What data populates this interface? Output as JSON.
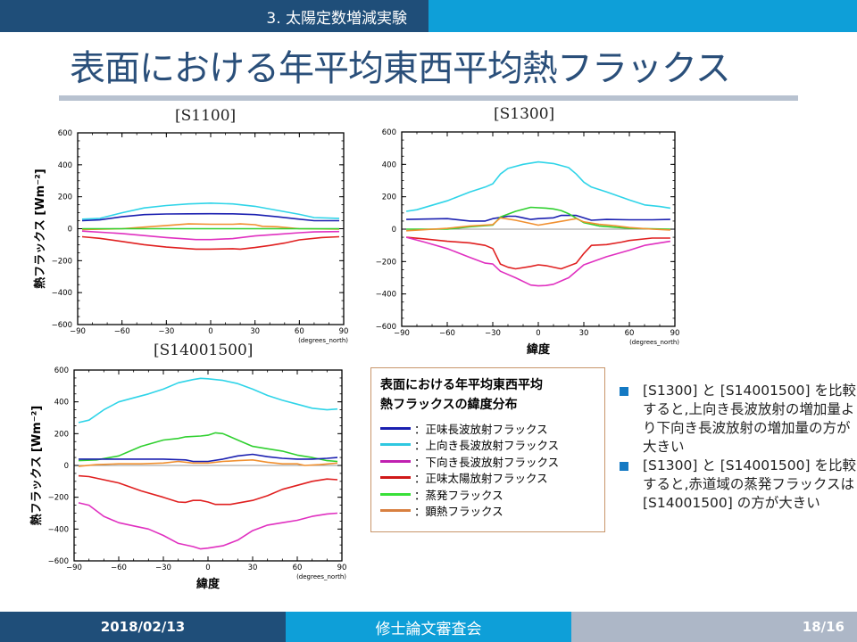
{
  "header": {
    "section": "3. 太陽定数増減実験"
  },
  "title": "表面における年平均東西平均熱フラックス",
  "colors": {
    "header_dark": "#1f4e79",
    "header_bright": "#0e9fd8",
    "title": "#2a4f7a",
    "footer_gray": "#adb7c7",
    "bullet": "#1479c3"
  },
  "chart_data": [
    {
      "type": "line",
      "title": "[S1100]",
      "xlabel": "",
      "xunit_label": "(degrees_north)",
      "ylabel": "熱フラックス [Wm⁻²]",
      "xlim": [
        -90,
        90
      ],
      "ylim": [
        -600,
        600
      ],
      "xticks": [
        "-90",
        "-60",
        "-30",
        "0",
        "30",
        "60",
        "90"
      ],
      "yticks": [
        "600",
        "400",
        "200",
        "0",
        "-200",
        "-400",
        "-600"
      ],
      "grid": false,
      "series": [
        {
          "name": "上向き長波放射フラックス",
          "color": "#2fd4e8",
          "x": [
            -87,
            -75,
            -60,
            -45,
            -30,
            -15,
            0,
            15,
            30,
            45,
            60,
            70,
            87
          ],
          "y": [
            60,
            65,
            100,
            130,
            145,
            155,
            160,
            155,
            140,
            115,
            90,
            70,
            65
          ]
        },
        {
          "name": "正味長波放射フラックス",
          "color": "#1a1fb0",
          "x": [
            -87,
            -75,
            -60,
            -45,
            -30,
            -15,
            0,
            15,
            30,
            45,
            60,
            70,
            87
          ],
          "y": [
            50,
            55,
            75,
            88,
            92,
            93,
            94,
            93,
            88,
            75,
            60,
            50,
            50
          ]
        },
        {
          "name": "顕熱フラックス",
          "color": "#f09030",
          "x": [
            -87,
            -60,
            -45,
            -30,
            -15,
            0,
            15,
            20,
            30,
            35,
            45,
            60,
            87
          ],
          "y": [
            -5,
            0,
            10,
            20,
            30,
            28,
            28,
            30,
            25,
            15,
            12,
            0,
            -3
          ]
        },
        {
          "name": "蒸発フラックス",
          "color": "#30d030",
          "x": [
            -87,
            -60,
            -30,
            0,
            30,
            60,
            87
          ],
          "y": [
            0,
            0,
            0,
            0,
            0,
            0,
            0
          ]
        },
        {
          "name": "下向き長波放射フラックス",
          "color": "#e030c0",
          "x": [
            -87,
            -60,
            -30,
            -10,
            0,
            15,
            30,
            45,
            60,
            70,
            87
          ],
          "y": [
            -15,
            -30,
            -55,
            -68,
            -68,
            -62,
            -45,
            -35,
            -25,
            -20,
            -18
          ]
        },
        {
          "name": "正味太陽放射フラックス",
          "color": "#e02020",
          "x": [
            -87,
            -75,
            -60,
            -45,
            -30,
            -10,
            0,
            15,
            20,
            30,
            40,
            50,
            60,
            75,
            87
          ],
          "y": [
            -50,
            -60,
            -80,
            -100,
            -115,
            -128,
            -128,
            -125,
            -128,
            -118,
            -105,
            -90,
            -70,
            -55,
            -50
          ]
        }
      ]
    },
    {
      "type": "line",
      "title": "[S1300]",
      "xlabel": "緯度",
      "xunit_label": "(degrees_north)",
      "ylabel": "",
      "xlim": [
        -90,
        90
      ],
      "ylim": [
        -600,
        600
      ],
      "xticks": [
        "-90",
        "-60",
        "-30",
        "0",
        "30",
        "60",
        "90"
      ],
      "yticks": [
        "600",
        "400",
        "200",
        "0",
        "-200",
        "-400",
        "-600"
      ],
      "grid": false,
      "series": [
        {
          "name": "上向き長波放射フラックス",
          "color": "#2fd4e8",
          "x": [
            -87,
            -80,
            -60,
            -45,
            -35,
            -30,
            -25,
            -20,
            -10,
            0,
            10,
            20,
            25,
            30,
            35,
            45,
            60,
            70,
            80,
            87
          ],
          "y": [
            110,
            120,
            175,
            230,
            260,
            280,
            340,
            375,
            400,
            415,
            405,
            380,
            340,
            290,
            260,
            230,
            180,
            150,
            140,
            130
          ]
        },
        {
          "name": "正味長波放射フラックス",
          "color": "#1a1fb0",
          "x": [
            -87,
            -60,
            -45,
            -35,
            -30,
            -20,
            -15,
            -10,
            -5,
            0,
            10,
            15,
            25,
            35,
            45,
            60,
            75,
            87
          ],
          "y": [
            60,
            65,
            50,
            50,
            65,
            80,
            80,
            70,
            60,
            65,
            70,
            85,
            85,
            55,
            60,
            58,
            58,
            60
          ]
        },
        {
          "name": "蒸発フラックス",
          "color": "#30d030",
          "x": [
            -87,
            -60,
            -45,
            -30,
            -25,
            -15,
            -5,
            5,
            10,
            15,
            20,
            30,
            40,
            60,
            87
          ],
          "y": [
            0,
            0,
            15,
            25,
            75,
            110,
            135,
            130,
            125,
            115,
            95,
            40,
            20,
            5,
            0
          ]
        },
        {
          "name": "顕熱フラックス",
          "color": "#f09030",
          "x": [
            -87,
            -60,
            -45,
            -30,
            -25,
            -15,
            -5,
            0,
            10,
            25,
            30,
            40,
            50,
            60,
            75,
            87
          ],
          "y": [
            -10,
            5,
            20,
            28,
            70,
            55,
            35,
            25,
            40,
            65,
            45,
            30,
            22,
            10,
            0,
            -5
          ]
        },
        {
          "name": "正味太陽放射フラックス",
          "color": "#e02020",
          "x": [
            -87,
            -75,
            -60,
            -45,
            -35,
            -30,
            -25,
            -20,
            -15,
            -5,
            0,
            5,
            15,
            25,
            30,
            35,
            45,
            55,
            60,
            75,
            87
          ],
          "y": [
            -50,
            -60,
            -75,
            -85,
            -100,
            -120,
            -215,
            -235,
            -245,
            -230,
            -220,
            -225,
            -245,
            -210,
            -150,
            -100,
            -95,
            -80,
            -70,
            -55,
            -55
          ]
        },
        {
          "name": "下向き長波放射フラックス",
          "color": "#e030c0",
          "x": [
            -87,
            -75,
            -60,
            -45,
            -35,
            -30,
            -25,
            -15,
            -5,
            0,
            5,
            10,
            15,
            20,
            30,
            45,
            60,
            70,
            80,
            87
          ],
          "y": [
            -50,
            -80,
            -120,
            -175,
            -210,
            -215,
            -260,
            -300,
            -345,
            -350,
            -348,
            -340,
            -320,
            -300,
            -220,
            -170,
            -130,
            -100,
            -85,
            -75
          ]
        }
      ]
    },
    {
      "type": "line",
      "title": "[S14001500]",
      "xlabel": "緯度",
      "xunit_label": "(degrees_north)",
      "ylabel": "熱フラックス [Wm⁻²]",
      "xlim": [
        -90,
        90
      ],
      "ylim": [
        -600,
        600
      ],
      "xticks": [
        "-90",
        "-60",
        "-30",
        "0",
        "30",
        "60",
        "90"
      ],
      "yticks": [
        "600",
        "400",
        "200",
        "0",
        "-200",
        "-400",
        "-600"
      ],
      "grid": false,
      "series": [
        {
          "name": "上向き長波放射フラックス",
          "color": "#2fd4e8",
          "x": [
            -87,
            -80,
            -70,
            -60,
            -50,
            -40,
            -30,
            -20,
            -10,
            -5,
            0,
            10,
            20,
            30,
            40,
            50,
            60,
            70,
            80,
            87
          ],
          "y": [
            270,
            285,
            350,
            400,
            425,
            450,
            480,
            520,
            540,
            548,
            545,
            535,
            515,
            480,
            440,
            410,
            385,
            360,
            350,
            355
          ]
        },
        {
          "name": "蒸発フラックス",
          "color": "#30d030",
          "x": [
            -87,
            -75,
            -60,
            -45,
            -30,
            -20,
            -15,
            -5,
            0,
            5,
            10,
            20,
            30,
            40,
            50,
            60,
            70,
            80,
            87
          ],
          "y": [
            30,
            35,
            60,
            120,
            160,
            170,
            180,
            185,
            190,
            205,
            200,
            160,
            120,
            105,
            90,
            65,
            50,
            30,
            25
          ]
        },
        {
          "name": "正味長波放射フラックス",
          "color": "#1a1fb0",
          "x": [
            -87,
            -60,
            -45,
            -30,
            -15,
            -10,
            0,
            10,
            20,
            30,
            40,
            50,
            60,
            70,
            80,
            87
          ],
          "y": [
            40,
            40,
            40,
            40,
            35,
            25,
            25,
            40,
            60,
            70,
            55,
            45,
            40,
            40,
            45,
            50
          ]
        },
        {
          "name": "顕熱フラックス",
          "color": "#f09030",
          "x": [
            -87,
            -75,
            -60,
            -45,
            -30,
            -20,
            -10,
            0,
            10,
            20,
            30,
            40,
            50,
            60,
            65,
            75,
            87
          ],
          "y": [
            -5,
            5,
            10,
            10,
            15,
            25,
            15,
            15,
            25,
            30,
            35,
            20,
            10,
            10,
            0,
            5,
            15
          ]
        },
        {
          "name": "正味太陽放射フラックス",
          "color": "#e02020",
          "x": [
            -87,
            -80,
            -60,
            -45,
            -30,
            -20,
            -15,
            -10,
            -5,
            0,
            5,
            15,
            30,
            40,
            50,
            60,
            70,
            80,
            87
          ],
          "y": [
            -65,
            -70,
            -110,
            -160,
            -200,
            -230,
            -232,
            -220,
            -220,
            -230,
            -245,
            -245,
            -220,
            -190,
            -150,
            -125,
            -100,
            -85,
            -90
          ]
        },
        {
          "name": "下向き長波放射フラックス",
          "color": "#e030c0",
          "x": [
            -87,
            -80,
            -70,
            -60,
            -50,
            -40,
            -30,
            -20,
            -10,
            -5,
            0,
            10,
            20,
            30,
            40,
            50,
            60,
            70,
            80,
            87
          ],
          "y": [
            -235,
            -250,
            -320,
            -360,
            -380,
            -400,
            -440,
            -490,
            -510,
            -525,
            -520,
            -505,
            -470,
            -410,
            -375,
            -360,
            -345,
            -320,
            -305,
            -300
          ]
        }
      ]
    }
  ],
  "legend": {
    "title_line1": "表面における年平均東西平均",
    "title_line2": "熱フラックスの緯度分布",
    "items": [
      {
        "label": "：正味長波放射フラックス",
        "color": "#1a1fb0"
      },
      {
        "label": "：上向き長波放射フラックス",
        "color": "#2fc8e0"
      },
      {
        "label": "：下向き長波放射フラックス",
        "color": "#c020b0"
      },
      {
        "label": "：正味太陽放射フラックス",
        "color": "#d01818"
      },
      {
        "label": "：蒸発フラックス",
        "color": "#38e038"
      },
      {
        "label": "：顕熱フラックス",
        "color": "#d88040"
      }
    ]
  },
  "notes": [
    "[S1300] と [S14001500] を比較すると,上向き長波放射の増加量より下向き長波放射の増加量の方が大きい",
    "[S1300] と [S14001500] を比較すると,赤道域の蒸発フラックスは [S14001500] の方が大きい"
  ],
  "footer": {
    "date": "2018/02/13",
    "event": "修士論文審査会",
    "page": "18/16"
  }
}
